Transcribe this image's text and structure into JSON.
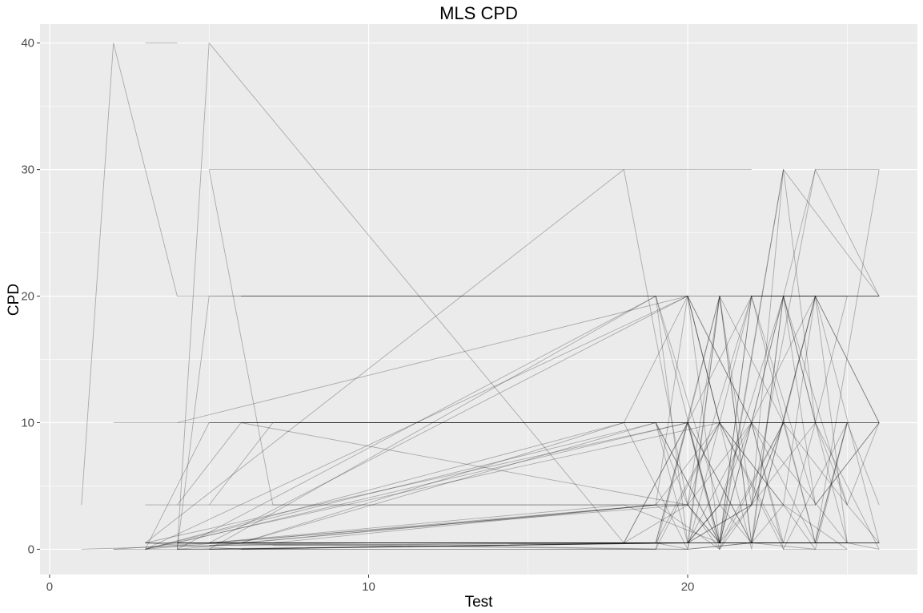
{
  "chart_data": {
    "type": "line",
    "title": "MLS CPD",
    "xlabel": "Test",
    "ylabel": "CPD",
    "xlim": [
      -0.3,
      27.2
    ],
    "ylim": [
      -2,
      41.5
    ],
    "x_ticks": [
      0,
      10,
      20
    ],
    "y_ticks": [
      0,
      10,
      20,
      30,
      40
    ],
    "grid": true,
    "legend": "none",
    "panel_background": "#ebebeb",
    "grid_major_color": "#ffffff",
    "line_color": "#000000",
    "line_opacity": 0.28,
    "series": [
      {
        "x": [
          1,
          2,
          4,
          19,
          21,
          23,
          26
        ],
        "y": [
          3.5,
          40,
          20,
          20,
          0.5,
          30,
          20
        ]
      },
      {
        "x": [
          1,
          5,
          10,
          15,
          21,
          25
        ],
        "y": [
          0,
          0.3,
          0.5,
          0.5,
          0.5,
          0.5
        ]
      },
      {
        "x": [
          2,
          4,
          5,
          20,
          21,
          22,
          25,
          26
        ],
        "y": [
          10,
          10,
          10,
          10,
          0.5,
          20,
          20,
          20
        ]
      },
      {
        "x": [
          2,
          5,
          7,
          18,
          20,
          22,
          24
        ],
        "y": [
          0,
          0.5,
          0.5,
          0.5,
          10,
          10,
          0.5
        ]
      },
      {
        "x": [
          3,
          4
        ],
        "y": [
          40,
          40
        ]
      },
      {
        "x": [
          3,
          5,
          6,
          19,
          20,
          22,
          23,
          24,
          26
        ],
        "y": [
          0,
          10,
          10,
          10,
          3.5,
          3.5,
          30,
          10,
          10
        ]
      },
      {
        "x": [
          3,
          4,
          5,
          20,
          22,
          23,
          25
        ],
        "y": [
          0.5,
          0.5,
          0.5,
          20,
          0,
          20,
          20
        ]
      },
      {
        "x": [
          3,
          6,
          20,
          21,
          22,
          24,
          26
        ],
        "y": [
          3.5,
          3.5,
          3.5,
          0.5,
          20,
          20,
          20
        ]
      },
      {
        "x": [
          4,
          5,
          18,
          20,
          21,
          23,
          25
        ],
        "y": [
          0,
          40,
          0.5,
          10,
          0,
          10,
          10
        ]
      },
      {
        "x": [
          4,
          6,
          19,
          21,
          22,
          23,
          24,
          26
        ],
        "y": [
          3.5,
          10,
          10,
          0.5,
          10,
          20,
          3.5,
          10
        ]
      },
      {
        "x": [
          4,
          5,
          6,
          22,
          23,
          24,
          26
        ],
        "y": [
          0,
          20,
          20,
          20,
          20,
          10,
          10
        ]
      },
      {
        "x": [
          5,
          7,
          18,
          19,
          20,
          21,
          22,
          23
        ],
        "y": [
          30,
          3.5,
          3.5,
          3.5,
          3.5,
          0,
          3.5,
          10
        ]
      },
      {
        "x": [
          5,
          6,
          19,
          21,
          22,
          24,
          25,
          26
        ],
        "y": [
          0.3,
          0.5,
          0.5,
          20,
          0.5,
          20,
          0.5,
          0.5
        ]
      },
      {
        "x": [
          5,
          18,
          19,
          22
        ],
        "y": [
          30,
          30,
          30,
          30
        ]
      },
      {
        "x": [
          6,
          20,
          21,
          23,
          25,
          26
        ],
        "y": [
          20,
          20,
          10,
          0,
          10,
          3.5
        ]
      },
      {
        "x": [
          6,
          20,
          22,
          24,
          26
        ],
        "y": [
          0.5,
          0.5,
          10,
          30,
          30
        ]
      },
      {
        "x": [
          3,
          18,
          20,
          21,
          23,
          24
        ],
        "y": [
          0,
          10,
          20,
          10,
          3.5,
          20
        ]
      },
      {
        "x": [
          4,
          19,
          21,
          22,
          25,
          26
        ],
        "y": [
          0,
          20,
          3.5,
          10,
          0.5,
          0
        ]
      },
      {
        "x": [
          5,
          20,
          21,
          23,
          24,
          26
        ],
        "y": [
          0.5,
          0,
          20,
          10,
          0.5,
          30
        ]
      },
      {
        "x": [
          3,
          18,
          20,
          22,
          24,
          26
        ],
        "y": [
          0.5,
          30,
          3.5,
          10,
          20,
          0.5
        ]
      },
      {
        "x": [
          4,
          19,
          20,
          22,
          23,
          25
        ],
        "y": [
          0.5,
          0.5,
          10,
          0.5,
          3.5,
          0
        ]
      },
      {
        "x": [
          5,
          20,
          22,
          24,
          25,
          26
        ],
        "y": [
          0,
          0.5,
          3.5,
          10,
          3.5,
          10
        ]
      },
      {
        "x": [
          6,
          19,
          21,
          23,
          24,
          25
        ],
        "y": [
          0.5,
          3.5,
          10,
          3.5,
          0,
          10
        ]
      },
      {
        "x": [
          4,
          20,
          22,
          23,
          24,
          26
        ],
        "y": [
          0.5,
          10,
          0.5,
          20,
          10,
          10
        ]
      },
      {
        "x": [
          3,
          19,
          20,
          21,
          23,
          25
        ],
        "y": [
          0,
          10,
          0.5,
          3.5,
          20,
          3.5
        ]
      },
      {
        "x": [
          5,
          18,
          21,
          22,
          24,
          26
        ],
        "y": [
          0.5,
          3.5,
          0.5,
          3.5,
          30,
          20
        ]
      },
      {
        "x": [
          6,
          20,
          21,
          22,
          24,
          25
        ],
        "y": [
          10,
          3.5,
          20,
          20,
          0.5,
          10
        ]
      },
      {
        "x": [
          4,
          19,
          20,
          22,
          23,
          26
        ],
        "y": [
          0,
          3.5,
          20,
          10,
          0.5,
          0.5
        ]
      },
      {
        "x": [
          3,
          20,
          21,
          23,
          25
        ],
        "y": [
          0.5,
          10,
          0.5,
          0.5,
          0.5
        ]
      },
      {
        "x": [
          6,
          19,
          20,
          21,
          22,
          24,
          26
        ],
        "y": [
          0,
          0.5,
          0,
          10,
          20,
          3.5,
          10
        ]
      },
      {
        "x": [
          5,
          7,
          20,
          22,
          23,
          24
        ],
        "y": [
          3.5,
          10,
          10,
          20,
          20,
          20
        ]
      },
      {
        "x": [
          3,
          5,
          19,
          21,
          23,
          25
        ],
        "y": [
          0,
          0,
          0.5,
          0.5,
          10,
          10
        ]
      },
      {
        "x": [
          4,
          20,
          21,
          22,
          24,
          26
        ],
        "y": [
          10,
          20,
          0.5,
          0.5,
          0.5,
          0.5
        ]
      },
      {
        "x": [
          2,
          3,
          21,
          22,
          24,
          25
        ],
        "y": [
          0,
          0,
          10,
          10,
          10,
          20
        ]
      },
      {
        "x": [
          5,
          19,
          20,
          21,
          23,
          24
        ],
        "y": [
          0,
          20,
          0.5,
          3.5,
          3.5,
          3.5
        ]
      },
      {
        "x": [
          3,
          6,
          20,
          22,
          25
        ],
        "y": [
          0.5,
          0,
          0,
          0.5,
          0.5
        ]
      },
      {
        "x": [
          4,
          7,
          19,
          21,
          23
        ],
        "y": [
          0.5,
          0.5,
          3.5,
          0,
          30
        ]
      },
      {
        "x": [
          6,
          19,
          21,
          22,
          24,
          25
        ],
        "y": [
          0.5,
          10,
          0.5,
          10,
          10,
          0.5
        ]
      },
      {
        "x": [
          5,
          19,
          20,
          22,
          23,
          24,
          26
        ],
        "y": [
          0.3,
          0.5,
          0.5,
          3.5,
          10,
          20,
          20
        ]
      },
      {
        "x": [
          4,
          20,
          21,
          22,
          24
        ],
        "y": [
          0,
          0.5,
          20,
          0.5,
          0
        ]
      },
      {
        "x": [
          3,
          19,
          21,
          23,
          25,
          26
        ],
        "y": [
          0.5,
          0,
          10,
          10,
          3.5,
          0.5
        ]
      },
      {
        "x": [
          5,
          20,
          21,
          23,
          24,
          26
        ],
        "y": [
          0.5,
          3.5,
          0.5,
          0.5,
          10,
          0
        ]
      },
      {
        "x": [
          6,
          18,
          20,
          22,
          24,
          25
        ],
        "y": [
          0.5,
          10,
          0,
          0.5,
          0.5,
          10
        ]
      },
      {
        "x": [
          4,
          19,
          21,
          22,
          23
        ],
        "y": [
          0,
          0,
          20,
          3.5,
          3.5
        ]
      },
      {
        "x": [
          3,
          20,
          22,
          23,
          25
        ],
        "y": [
          0,
          20,
          10,
          0,
          0
        ]
      },
      {
        "x": [
          5,
          20,
          21,
          22,
          24,
          26
        ],
        "y": [
          0,
          0.5,
          3.5,
          0.5,
          20,
          10
        ]
      },
      {
        "x": [
          6,
          19,
          21,
          23,
          25
        ],
        "y": [
          0,
          0.5,
          10,
          0.5,
          0.5
        ]
      },
      {
        "x": [
          4,
          18,
          20,
          22,
          24,
          26
        ],
        "y": [
          0.5,
          0.5,
          3.5,
          20,
          20,
          10
        ]
      },
      {
        "x": [
          5,
          20,
          21,
          22,
          23,
          24
        ],
        "y": [
          10,
          10,
          10,
          10,
          10,
          10
        ]
      },
      {
        "x": [
          6,
          20,
          22,
          23,
          25
        ],
        "y": [
          10,
          10,
          10,
          10,
          10
        ]
      },
      {
        "x": [
          6,
          21,
          23,
          24,
          26
        ],
        "y": [
          20,
          20,
          20,
          20,
          20
        ]
      },
      {
        "x": [
          5,
          20,
          22,
          24,
          25
        ],
        "y": [
          0.5,
          0.5,
          0.5,
          0.5,
          0.5
        ]
      },
      {
        "x": [
          7,
          19,
          21,
          23,
          26
        ],
        "y": [
          0.3,
          0.5,
          0.5,
          0.5,
          0.5
        ]
      },
      {
        "x": [
          3,
          19,
          20,
          21,
          22
        ],
        "y": [
          0,
          3.5,
          3.5,
          3.5,
          3.5
        ]
      }
    ]
  }
}
